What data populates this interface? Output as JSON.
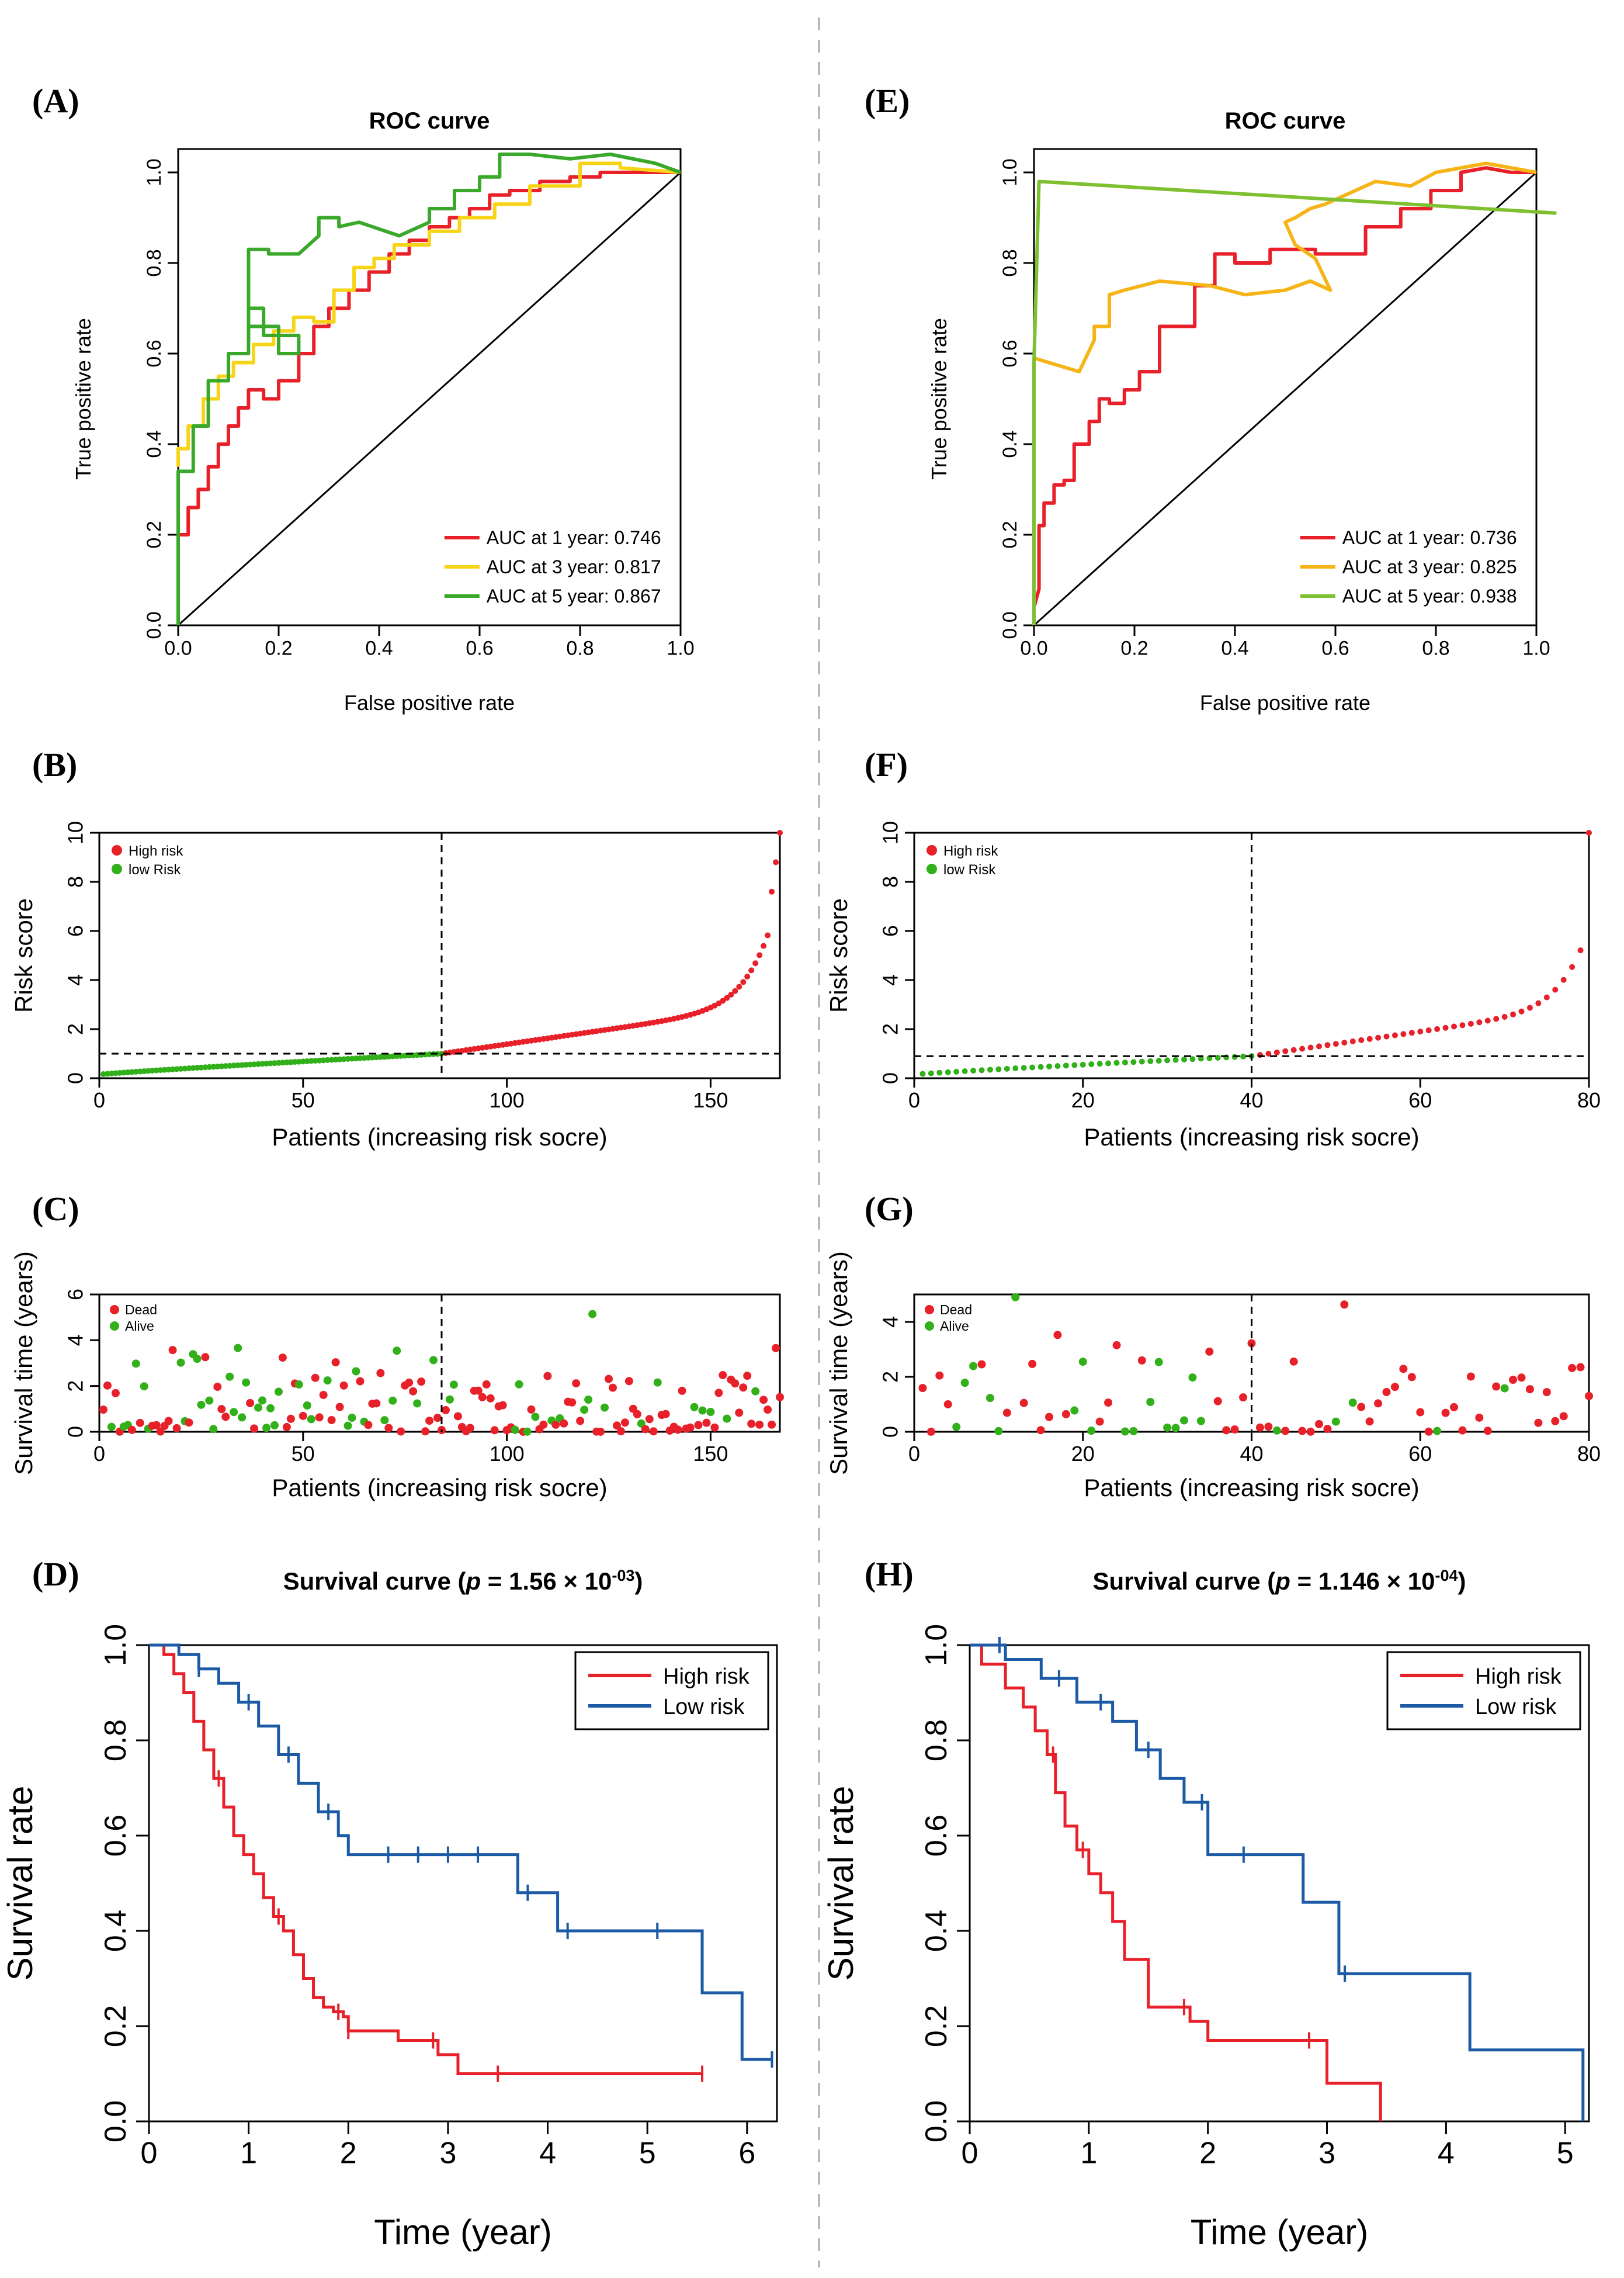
{
  "panels": {
    "A": {
      "label": "(A)",
      "chart_data": {
        "type": "line",
        "title": "ROC curve",
        "xlabel": "False positive rate",
        "ylabel": "True positive rate",
        "xlim": [
          0,
          1
        ],
        "ylim": [
          0,
          1
        ],
        "xticks": [
          "0.0",
          "0.2",
          "0.4",
          "0.6",
          "0.8",
          "1.0"
        ],
        "yticks": [
          "0.0",
          "0.2",
          "0.4",
          "0.6",
          "0.8",
          "1.0"
        ],
        "reference_line": [
          [
            0,
            0
          ],
          [
            1,
            1
          ]
        ],
        "series": [
          {
            "name": "AUC at 1 year: 0.746",
            "color": "#e8202a",
            "x": [
              0,
              0,
              0.02,
              0.02,
              0.04,
              0.04,
              0.06,
              0.06,
              0.08,
              0.08,
              0.1,
              0.1,
              0.12,
              0.12,
              0.14,
              0.14,
              0.17,
              0.17,
              0.2,
              0.2,
              0.24,
              0.24,
              0.27,
              0.27,
              0.3,
              0.3,
              0.34,
              0.34,
              0.38,
              0.38,
              0.42,
              0.42,
              0.46,
              0.46,
              0.5,
              0.5,
              0.54,
              0.54,
              0.58,
              0.58,
              0.62,
              0.62,
              0.66,
              0.66,
              0.72,
              0.72,
              0.78,
              0.78,
              0.84,
              0.84,
              0.9,
              0.9,
              1
            ],
            "y": [
              0.15,
              0.2,
              0.2,
              0.26,
              0.26,
              0.3,
              0.3,
              0.35,
              0.35,
              0.4,
              0.4,
              0.44,
              0.44,
              0.48,
              0.48,
              0.52,
              0.52,
              0.5,
              0.5,
              0.54,
              0.54,
              0.6,
              0.6,
              0.66,
              0.66,
              0.7,
              0.7,
              0.74,
              0.74,
              0.78,
              0.78,
              0.82,
              0.82,
              0.85,
              0.85,
              0.88,
              0.88,
              0.9,
              0.9,
              0.92,
              0.92,
              0.95,
              0.95,
              0.96,
              0.96,
              0.98,
              0.98,
              0.99,
              0.99,
              1.0,
              1.0,
              1.0,
              1.0
            ]
          },
          {
            "name": "AUC at 3 year: 0.817",
            "color": "#f7d417",
            "x": [
              0,
              0,
              0.02,
              0.02,
              0.05,
              0.05,
              0.08,
              0.08,
              0.11,
              0.11,
              0.15,
              0.15,
              0.19,
              0.19,
              0.23,
              0.23,
              0.27,
              0.27,
              0.31,
              0.31,
              0.35,
              0.35,
              0.39,
              0.39,
              0.43,
              0.43,
              0.5,
              0.5,
              0.56,
              0.56,
              0.63,
              0.63,
              0.7,
              0.7,
              0.8,
              0.8,
              0.88,
              0.88,
              1
            ],
            "y": [
              0.35,
              0.39,
              0.39,
              0.44,
              0.44,
              0.5,
              0.5,
              0.55,
              0.55,
              0.58,
              0.58,
              0.62,
              0.62,
              0.65,
              0.65,
              0.68,
              0.68,
              0.67,
              0.67,
              0.74,
              0.74,
              0.79,
              0.79,
              0.81,
              0.81,
              0.84,
              0.84,
              0.87,
              0.87,
              0.9,
              0.9,
              0.93,
              0.93,
              0.97,
              0.97,
              1.02,
              1.02,
              1.01,
              1.0
            ]
          },
          {
            "name": "AUC at 5 year: 0.867",
            "color": "#3aa82a",
            "x": [
              0,
              0,
              0.03,
              0.03,
              0.06,
              0.06,
              0.1,
              0.1,
              0.14,
              0.14,
              0.17,
              0.17,
              0.24,
              0.24,
              0.2,
              0.2,
              0.14,
              0.14,
              0.18,
              0.18,
              0.24,
              0.28,
              0.28,
              0.32,
              0.32,
              0.36,
              0.44,
              0.5,
              0.5,
              0.55,
              0.55,
              0.6,
              0.6,
              0.64,
              0.64,
              0.7,
              0.78,
              0.86,
              0.95,
              1
            ],
            "y": [
              0,
              0.34,
              0.34,
              0.44,
              0.44,
              0.54,
              0.54,
              0.6,
              0.6,
              0.7,
              0.7,
              0.64,
              0.64,
              0.6,
              0.6,
              0.66,
              0.66,
              0.83,
              0.83,
              0.82,
              0.82,
              0.86,
              0.9,
              0.9,
              0.88,
              0.89,
              0.86,
              0.89,
              0.92,
              0.92,
              0.96,
              0.96,
              0.99,
              0.99,
              1.04,
              1.04,
              1.03,
              1.04,
              1.02,
              1.0
            ]
          }
        ],
        "legend": "bottom-right"
      }
    },
    "E": {
      "label": "(E)",
      "chart_data": {
        "type": "line",
        "title": "ROC curve",
        "xlabel": "False positive rate",
        "ylabel": "True positive rate",
        "xlim": [
          0,
          1
        ],
        "ylim": [
          0,
          1
        ],
        "xticks": [
          "0.0",
          "0.2",
          "0.4",
          "0.6",
          "0.8",
          "1.0"
        ],
        "yticks": [
          "0.0",
          "0.2",
          "0.4",
          "0.6",
          "0.8",
          "1.0"
        ],
        "reference_line": [
          [
            0,
            0
          ],
          [
            1,
            1
          ]
        ],
        "series": [
          {
            "name": "AUC at 1 year: 0.736",
            "color": "#e8202a",
            "x": [
              0,
              0.01,
              0.01,
              0.02,
              0.02,
              0.04,
              0.04,
              0.06,
              0.06,
              0.08,
              0.08,
              0.11,
              0.11,
              0.13,
              0.13,
              0.15,
              0.15,
              0.18,
              0.18,
              0.21,
              0.21,
              0.25,
              0.25,
              0.28,
              0.28,
              0.32,
              0.32,
              0.36,
              0.36,
              0.4,
              0.4,
              0.47,
              0.47,
              0.56,
              0.56,
              0.66,
              0.66,
              0.73,
              0.73,
              0.79,
              0.79,
              0.85,
              0.85,
              0.9,
              0.95,
              1
            ],
            "y": [
              0.04,
              0.08,
              0.22,
              0.22,
              0.27,
              0.27,
              0.31,
              0.31,
              0.32,
              0.32,
              0.4,
              0.4,
              0.45,
              0.45,
              0.5,
              0.5,
              0.49,
              0.49,
              0.52,
              0.52,
              0.56,
              0.56,
              0.66,
              0.66,
              0.66,
              0.66,
              0.75,
              0.75,
              0.82,
              0.82,
              0.8,
              0.8,
              0.83,
              0.83,
              0.82,
              0.82,
              0.88,
              0.88,
              0.92,
              0.92,
              0.96,
              0.96,
              1.0,
              1.01,
              1.0,
              1.0
            ]
          },
          {
            "name": "AUC at 3 year: 0.825",
            "color": "#f6b417",
            "x": [
              0,
              0.03,
              0.06,
              0.09,
              0.12,
              0.12,
              0.15,
              0.15,
              0.18,
              0.25,
              0.35,
              0.42,
              0.5,
              0.55,
              0.59,
              0.56,
              0.52,
              0.5,
              0.52,
              0.55,
              0.58,
              0.62,
              0.68,
              0.75,
              0.8,
              0.85,
              0.9,
              0.95,
              1
            ],
            "y": [
              0.59,
              0.58,
              0.57,
              0.56,
              0.63,
              0.66,
              0.66,
              0.73,
              0.74,
              0.76,
              0.75,
              0.73,
              0.74,
              0.76,
              0.74,
              0.81,
              0.84,
              0.89,
              0.9,
              0.92,
              0.93,
              0.95,
              0.98,
              0.97,
              1.0,
              1.01,
              1.02,
              1.01,
              1.0
            ]
          },
          {
            "name": "AUC at 5 year: 0.938",
            "color": "#7fc031",
            "x": [
              0,
              0,
              0,
              0.01,
              1.05
            ],
            "y": [
              0.0,
              0.08,
              0.58,
              0.98,
              0.91
            ]
          }
        ],
        "legend": "bottom-right"
      }
    },
    "B": {
      "label": "(B)",
      "chart_data": {
        "type": "scatter",
        "xlabel": "Patients (increasing risk socre)",
        "ylabel": "Risk score",
        "xlim": [
          0,
          167
        ],
        "ylim": [
          0,
          10
        ],
        "xticks": [
          "0",
          "50",
          "100",
          "150"
        ],
        "yticks": [
          "0",
          "2",
          "4",
          "6",
          "8",
          "10"
        ],
        "n_patients": 167,
        "cutoff_index": 84,
        "cutoff_score": 1.0,
        "legend": [
          "High risk",
          "low Risk"
        ],
        "colors": {
          "high": "#e8202a",
          "low": "#31b019"
        }
      }
    },
    "F": {
      "label": "(F)",
      "chart_data": {
        "type": "scatter",
        "xlabel": "Patients (increasing risk socre)",
        "ylabel": "Risk score",
        "xlim": [
          0,
          80
        ],
        "ylim": [
          0,
          10
        ],
        "xticks": [
          "0",
          "20",
          "40",
          "60",
          "80"
        ],
        "yticks": [
          "0",
          "2",
          "4",
          "6",
          "8",
          "10"
        ],
        "n_patients": 80,
        "cutoff_index": 40,
        "cutoff_score": 0.9,
        "legend": [
          "High risk",
          "low Risk"
        ],
        "colors": {
          "high": "#e8202a",
          "low": "#31b019"
        }
      }
    },
    "C": {
      "label": "(C)",
      "chart_data": {
        "type": "scatter",
        "xlabel": "Patients (increasing risk socre)",
        "ylabel": "Survival time (years)",
        "xlim": [
          0,
          167
        ],
        "ylim": [
          0,
          6
        ],
        "xticks": [
          "0",
          "50",
          "100",
          "150"
        ],
        "yticks": [
          "0",
          "2",
          "4",
          "6"
        ],
        "n_patients": 167,
        "cutoff_index": 84,
        "legend": [
          "Dead",
          "Alive"
        ],
        "colors": {
          "dead": "#e8202a",
          "alive": "#31b019"
        }
      }
    },
    "G": {
      "label": "(G)",
      "chart_data": {
        "type": "scatter",
        "xlabel": "Patients (increasing risk socre)",
        "ylabel": "Survival time (years)",
        "xlim": [
          0,
          80
        ],
        "ylim": [
          0,
          5
        ],
        "xticks": [
          "0",
          "20",
          "40",
          "60",
          "80"
        ],
        "yticks": [
          "0",
          "2",
          "4"
        ],
        "n_patients": 80,
        "cutoff_index": 40,
        "legend": [
          "Dead",
          "Alive"
        ],
        "colors": {
          "dead": "#e8202a",
          "alive": "#31b019"
        }
      }
    },
    "D": {
      "label": "(D)",
      "chart_data": {
        "type": "line",
        "title_main": "Survival curve (",
        "title_p": "p",
        "title_eq": " = 1.56 × 10",
        "title_exp": "-03",
        "title_end": ")",
        "xlabel": "Time (year)",
        "ylabel": "Survival rate",
        "xlim": [
          0,
          6.3
        ],
        "ylim": [
          0,
          1
        ],
        "xticks": [
          "0",
          "1",
          "2",
          "3",
          "4",
          "5",
          "6"
        ],
        "yticks": [
          "0.0",
          "0.2",
          "0.4",
          "0.6",
          "0.8",
          "1.0"
        ],
        "series": [
          {
            "name": "High risk",
            "color": "#e8202a",
            "x": [
              0,
              0.15,
              0.25,
              0.35,
              0.45,
              0.55,
              0.65,
              0.75,
              0.85,
              0.95,
              1.05,
              1.15,
              1.25,
              1.35,
              1.45,
              1.55,
              1.65,
              1.75,
              1.85,
              1.95,
              2.0,
              2.5,
              2.9,
              3.1,
              5.55
            ],
            "y": [
              1.0,
              0.98,
              0.94,
              0.9,
              0.84,
              0.78,
              0.72,
              0.66,
              0.6,
              0.56,
              0.52,
              0.47,
              0.43,
              0.4,
              0.35,
              0.3,
              0.26,
              0.24,
              0.23,
              0.22,
              0.19,
              0.17,
              0.14,
              0.1,
              0.1
            ],
            "censor_x": [
              0.7,
              1.3,
              1.9,
              2.0,
              2.85,
              3.5,
              5.55
            ]
          },
          {
            "name": "Low risk",
            "color": "#1c5aa6",
            "x": [
              0,
              0.3,
              0.5,
              0.7,
              0.9,
              1.1,
              1.3,
              1.5,
              1.7,
              1.9,
              2.0,
              3.7,
              4.1,
              5.55,
              5.95,
              6.25
            ],
            "y": [
              1.0,
              0.98,
              0.95,
              0.92,
              0.88,
              0.83,
              0.77,
              0.71,
              0.65,
              0.6,
              0.56,
              0.48,
              0.4,
              0.27,
              0.13,
              0.13
            ],
            "censor_x": [
              0.5,
              1.0,
              1.4,
              1.8,
              2.4,
              2.7,
              3.0,
              3.3,
              3.8,
              4.2,
              5.1,
              6.25
            ]
          }
        ],
        "legend": "top-right"
      }
    },
    "H": {
      "label": "(H)",
      "chart_data": {
        "type": "line",
        "title_main": "Survival curve (",
        "title_p": "p",
        "title_eq": " = 1.146 × 10",
        "title_exp": "-04",
        "title_end": ")",
        "xlabel": "Time (year)",
        "ylabel": "Survival rate",
        "xlim": [
          0,
          5.2
        ],
        "ylim": [
          0,
          1
        ],
        "xticks": [
          "0",
          "1",
          "2",
          "3",
          "4",
          "5"
        ],
        "yticks": [
          "0.0",
          "0.2",
          "0.4",
          "0.6",
          "0.8",
          "1.0"
        ],
        "series": [
          {
            "name": "High risk",
            "color": "#e8202a",
            "x": [
              0,
              0.1,
              0.3,
              0.45,
              0.55,
              0.65,
              0.72,
              0.8,
              0.9,
              1.0,
              1.1,
              1.2,
              1.3,
              1.5,
              1.85,
              2.0,
              2.5,
              3.0,
              3.45
            ],
            "y": [
              1.0,
              0.96,
              0.91,
              0.87,
              0.82,
              0.77,
              0.69,
              0.62,
              0.57,
              0.52,
              0.48,
              0.42,
              0.34,
              0.24,
              0.21,
              0.17,
              0.17,
              0.08,
              0.0
            ],
            "censor_x": [
              0.7,
              0.95,
              1.8,
              2.85
            ]
          },
          {
            "name": "Low risk",
            "color": "#1c5aa6",
            "x": [
              0,
              0.3,
              0.6,
              0.9,
              1.2,
              1.4,
              1.6,
              1.8,
              2.0,
              2.8,
              3.1,
              4.2,
              5.15
            ],
            "y": [
              1.0,
              0.97,
              0.93,
              0.88,
              0.84,
              0.78,
              0.72,
              0.67,
              0.56,
              0.46,
              0.31,
              0.15,
              0.0
            ],
            "censor_x": [
              0.25,
              0.75,
              1.1,
              1.5,
              1.95,
              2.3,
              3.15
            ]
          }
        ],
        "legend": "top-right"
      }
    }
  },
  "legend_entries": {
    "roc": [
      "AUC at 1 year",
      "AUC at 3 year",
      "AUC at 5 year"
    ]
  }
}
